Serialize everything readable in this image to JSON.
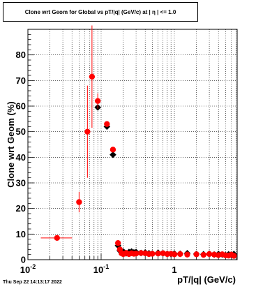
{
  "chart_data": {
    "type": "scatter",
    "title": "Clone wrt Geom for Global vs pT/|q| (GeV/c) at |  η | <= 1.0",
    "xlabel": "pT/|q| (GeV/c)",
    "ylabel": "Clone wrt Geom (%)",
    "x_scale": "log",
    "xlim": [
      0.01,
      7.2
    ],
    "ylim": [
      0,
      90
    ],
    "x_tick_labels": [
      "10^-2",
      "10^-1",
      "1"
    ],
    "y_tick_labels": [
      "0",
      "10",
      "20",
      "30",
      "40",
      "50",
      "60",
      "70",
      "80"
    ],
    "grid": true,
    "timestamp": "Thu Sep 22 14:13:17 2022",
    "series": [
      {
        "color": "#000000",
        "marker": "diamond",
        "x": [
          0.09,
          0.12,
          0.145,
          0.17,
          0.18,
          0.19,
          0.2,
          0.21,
          0.22,
          0.24,
          0.26,
          0.28,
          0.3,
          0.35,
          0.4,
          0.45,
          0.5,
          0.6,
          0.7,
          0.8,
          0.9,
          1.0,
          1.2,
          1.5,
          2.0,
          2.5,
          3.0,
          3.5,
          4.0,
          4.5,
          5.0,
          5.5,
          6.0,
          6.5
        ],
        "y": [
          59.5,
          52,
          41,
          5.5,
          3.5,
          3,
          3.2,
          2.7,
          2.5,
          3,
          3.2,
          2.8,
          3,
          2.6,
          2.8,
          2.5,
          2.4,
          2.7,
          2.5,
          2.3,
          2.2,
          2.4,
          2.3,
          2.5,
          2.2,
          2.1,
          2.3,
          2,
          2.2,
          2,
          1.8,
          2.1,
          1.9,
          2.2
        ]
      },
      {
        "color": "#ff0000",
        "marker": "circle",
        "x": [
          0.025,
          0.05,
          0.065,
          0.075,
          0.09,
          0.12,
          0.145,
          0.17,
          0.18,
          0.19,
          0.2,
          0.21,
          0.22,
          0.24,
          0.26,
          0.28,
          0.3,
          0.35,
          0.4,
          0.45,
          0.5,
          0.6,
          0.7,
          0.8,
          0.9,
          1.0,
          1.2,
          1.5,
          2.0,
          2.5,
          3.0,
          3.5,
          4.0,
          4.5,
          5.0,
          5.5,
          6.0,
          6.5
        ],
        "y": [
          8.5,
          22.5,
          50,
          71.5,
          62,
          53,
          43,
          6.5,
          4,
          2.5,
          2.2,
          2.4,
          2.6,
          2.2,
          2.5,
          2.3,
          2.4,
          2.6,
          2.5,
          2.2,
          2.3,
          2.4,
          2.5,
          2.2,
          2.3,
          2.1,
          2.2,
          2,
          2.1,
          1.9,
          2.2,
          2,
          1.8,
          2.1,
          1.7,
          1.6,
          2,
          1.5
        ],
        "y_err": [
          0,
          4,
          18,
          20,
          3,
          1,
          1,
          1,
          1,
          0.8,
          0.8,
          0.8,
          0.8,
          0.8,
          0.8,
          0.8,
          0.8,
          0.8,
          0.8,
          0.8,
          0.8,
          0.8,
          0.8,
          0.8,
          0.8,
          0.8,
          0.8,
          0.8,
          0.8,
          0.8,
          0.8,
          0.8,
          0.8,
          0.8,
          0.8,
          0.8,
          0.8,
          0.8
        ],
        "x_err_low": [
          0.01,
          0.003,
          0.003,
          0.003,
          0,
          0,
          0,
          0,
          0,
          0,
          0,
          0,
          0,
          0,
          0,
          0,
          0,
          0,
          0,
          0,
          0,
          0,
          0,
          0,
          0,
          0,
          0,
          0,
          0,
          0,
          0,
          0,
          0,
          0,
          0,
          0,
          0,
          0
        ],
        "x_err_high": [
          0.015,
          0.003,
          0.003,
          0.003,
          0,
          0,
          0,
          0,
          0,
          0,
          0,
          0,
          0,
          0,
          0,
          0,
          0,
          0,
          0,
          0,
          0,
          0,
          0,
          0,
          0,
          0,
          0,
          0,
          0,
          0,
          0,
          0,
          0,
          0,
          0,
          0,
          0,
          0
        ]
      }
    ]
  }
}
